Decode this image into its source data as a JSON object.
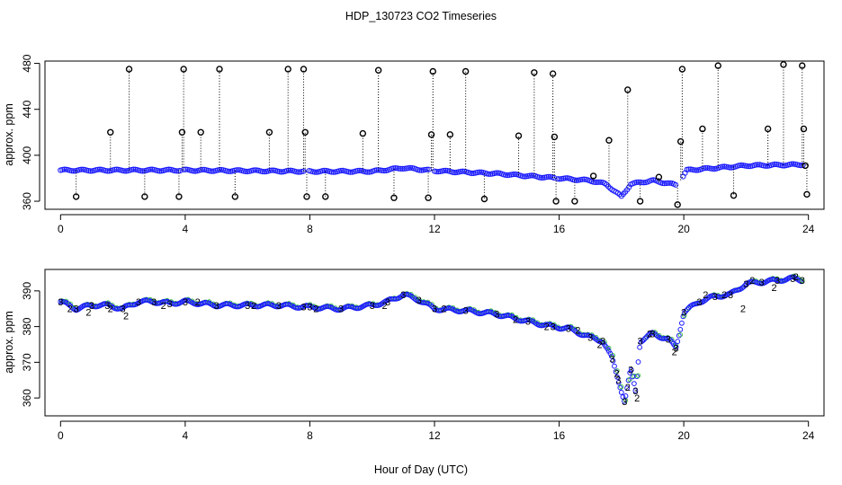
{
  "title": "HDP_130723  CO2 Timeseries",
  "xlabel": "Hour of Day (UTC)",
  "chart_data": [
    {
      "type": "scatter",
      "panel": "top",
      "ylabel": "approx. ppm",
      "xlim": [
        -0.5,
        24.5
      ],
      "ylim": [
        353,
        482
      ],
      "xticks": [
        0,
        4,
        8,
        12,
        16,
        20,
        24
      ],
      "yticks": [
        360,
        400,
        440,
        480
      ],
      "baseline": [
        [
          0,
          387
        ],
        [
          2,
          387
        ],
        [
          4,
          387
        ],
        [
          6,
          386.5
        ],
        [
          8,
          386
        ],
        [
          10,
          386
        ],
        [
          11,
          389
        ],
        [
          12,
          386.5
        ],
        [
          14,
          384
        ],
        [
          16,
          380
        ],
        [
          17,
          378
        ],
        [
          17.5,
          375
        ],
        [
          18,
          364
        ],
        [
          18.3,
          375
        ],
        [
          19,
          378
        ],
        [
          19.8,
          374
        ],
        [
          20.1,
          387
        ],
        [
          22,
          391
        ],
        [
          24,
          392
        ]
      ],
      "spikes": [
        {
          "x": 0.5,
          "y": 364
        },
        {
          "x": 1.6,
          "y": 420
        },
        {
          "x": 2.2,
          "y": 475
        },
        {
          "x": 2.7,
          "y": 364
        },
        {
          "x": 3.8,
          "y": 364
        },
        {
          "x": 3.9,
          "y": 420
        },
        {
          "x": 3.95,
          "y": 475
        },
        {
          "x": 4.5,
          "y": 420
        },
        {
          "x": 5.1,
          "y": 475
        },
        {
          "x": 5.6,
          "y": 364
        },
        {
          "x": 6.7,
          "y": 420
        },
        {
          "x": 7.3,
          "y": 475
        },
        {
          "x": 7.8,
          "y": 475
        },
        {
          "x": 7.85,
          "y": 420
        },
        {
          "x": 7.9,
          "y": 364
        },
        {
          "x": 8.5,
          "y": 364
        },
        {
          "x": 9.7,
          "y": 419
        },
        {
          "x": 10.2,
          "y": 474
        },
        {
          "x": 10.7,
          "y": 363
        },
        {
          "x": 11.8,
          "y": 363
        },
        {
          "x": 11.9,
          "y": 418
        },
        {
          "x": 11.95,
          "y": 473
        },
        {
          "x": 12.5,
          "y": 418
        },
        {
          "x": 13.0,
          "y": 473
        },
        {
          "x": 13.6,
          "y": 362
        },
        {
          "x": 14.7,
          "y": 417
        },
        {
          "x": 15.2,
          "y": 472
        },
        {
          "x": 15.8,
          "y": 471
        },
        {
          "x": 15.85,
          "y": 416
        },
        {
          "x": 15.9,
          "y": 360
        },
        {
          "x": 16.5,
          "y": 360
        },
        {
          "x": 17.1,
          "y": 382
        },
        {
          "x": 17.6,
          "y": 413
        },
        {
          "x": 18.2,
          "y": 457
        },
        {
          "x": 18.6,
          "y": 360
        },
        {
          "x": 19.2,
          "y": 381
        },
        {
          "x": 19.8,
          "y": 357
        },
        {
          "x": 19.9,
          "y": 412
        },
        {
          "x": 19.95,
          "y": 475
        },
        {
          "x": 20.6,
          "y": 423
        },
        {
          "x": 21.1,
          "y": 478
        },
        {
          "x": 21.6,
          "y": 365
        },
        {
          "x": 22.7,
          "y": 423
        },
        {
          "x": 23.2,
          "y": 479
        },
        {
          "x": 23.8,
          "y": 478
        },
        {
          "x": 23.85,
          "y": 423
        },
        {
          "x": 23.9,
          "y": 391
        },
        {
          "x": 23.95,
          "y": 366
        }
      ]
    },
    {
      "type": "scatter",
      "panel": "bottom",
      "ylabel": "approx. ppm",
      "xlim": [
        -0.5,
        24.5
      ],
      "ylim": [
        355,
        396
      ],
      "xticks": [
        0,
        4,
        8,
        12,
        16,
        20,
        24
      ],
      "yticks": [
        360,
        370,
        380,
        390
      ],
      "series": [
        {
          "name": "3",
          "color": "#1a1aff",
          "points": [
            [
              0,
              387
            ],
            [
              0.5,
              385
            ],
            [
              1,
              386
            ],
            [
              1.5,
              386
            ],
            [
              2,
              385
            ],
            [
              2.5,
              387
            ],
            [
              3,
              387
            ],
            [
              3.5,
              386.5
            ],
            [
              4,
              387
            ],
            [
              5,
              386
            ],
            [
              6,
              386
            ],
            [
              7,
              386
            ],
            [
              7.8,
              385.5
            ],
            [
              8,
              385.5
            ],
            [
              9,
              385
            ],
            [
              10,
              386
            ],
            [
              10.5,
              387
            ],
            [
              11,
              389
            ],
            [
              11.5,
              387.5
            ],
            [
              12,
              385
            ],
            [
              13,
              384.5
            ],
            [
              14,
              383.5
            ],
            [
              15,
              381.5
            ],
            [
              15.8,
              380
            ],
            [
              16.3,
              379.5
            ],
            [
              17,
              377
            ],
            [
              17.4,
              376
            ],
            [
              17.7,
              371
            ],
            [
              17.9,
              365
            ],
            [
              18.1,
              359
            ],
            [
              18.3,
              368
            ],
            [
              18.45,
              362
            ],
            [
              18.6,
              376
            ],
            [
              19,
              378
            ],
            [
              19.5,
              376.5
            ],
            [
              19.75,
              374
            ],
            [
              20,
              384
            ],
            [
              20.5,
              387
            ],
            [
              21,
              388.5
            ],
            [
              21.5,
              389
            ],
            [
              22,
              392
            ],
            [
              22.5,
              392.5
            ],
            [
              23,
              393
            ],
            [
              23.5,
              393.5
            ],
            [
              23.8,
              393
            ]
          ]
        },
        {
          "name": "2",
          "color": "#22bb22",
          "points": [
            [
              0.3,
              385
            ],
            [
              0.9,
              384
            ],
            [
              1.6,
              385
            ],
            [
              2.1,
              383
            ],
            [
              3.3,
              386
            ],
            [
              4.4,
              387
            ],
            [
              6.2,
              386
            ],
            [
              8.2,
              385
            ],
            [
              10.4,
              386
            ],
            [
              12.3,
              385
            ],
            [
              14.6,
              382
            ],
            [
              15.6,
              380
            ],
            [
              16.6,
              379
            ],
            [
              17.3,
              375
            ],
            [
              17.85,
              367
            ],
            [
              18.2,
              363
            ],
            [
              18.5,
              360
            ],
            [
              18.9,
              378
            ],
            [
              19.7,
              373
            ],
            [
              20.7,
              389
            ],
            [
              21.3,
              389
            ],
            [
              21.9,
              385
            ],
            [
              22.2,
              393
            ],
            [
              22.9,
              391
            ],
            [
              23.6,
              394
            ]
          ]
        }
      ]
    }
  ]
}
